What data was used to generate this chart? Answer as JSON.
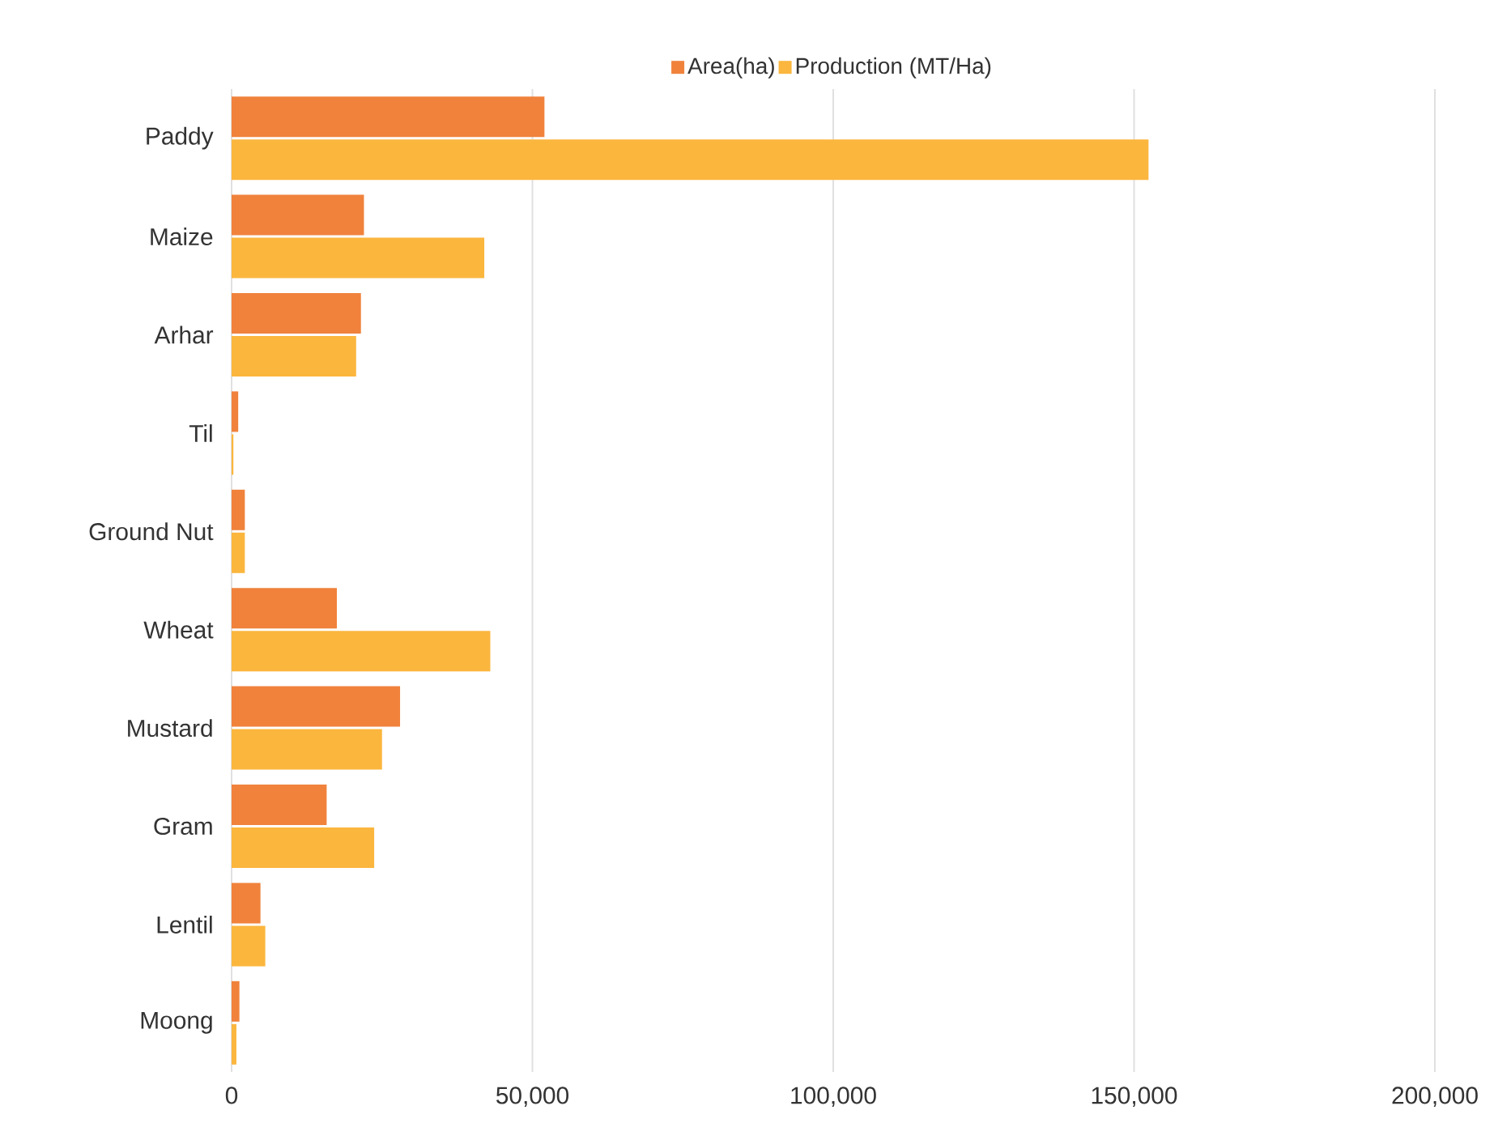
{
  "chart_data": {
    "type": "bar",
    "orientation": "horizontal",
    "categories": [
      "Paddy",
      "Maize",
      "Arhar",
      "Til",
      "Ground Nut",
      "Wheat",
      "Mustard",
      "Gram",
      "Lentil",
      "Moong"
    ],
    "series": [
      {
        "name": "Area(ha)",
        "color": "#f0823c",
        "values": [
          52000,
          22000,
          21500,
          1100,
          2200,
          17500,
          28000,
          15800,
          4800,
          1300
        ]
      },
      {
        "name": "Production (MT/Ha)",
        "color": "#fbb63e",
        "values": [
          152400,
          42000,
          20700,
          300,
          2200,
          43000,
          25000,
          23700,
          5600,
          800
        ]
      }
    ],
    "xlim": [
      0,
      200000
    ],
    "xticks": [
      0,
      {
        "value": 50000,
        "label": "50,000"
      },
      {
        "value": 100000,
        "label": "100,000"
      },
      {
        "value": 150000,
        "label": "150,000"
      },
      {
        "value": 200000,
        "label": "200,000"
      }
    ],
    "grid": "x",
    "legend": "top"
  }
}
